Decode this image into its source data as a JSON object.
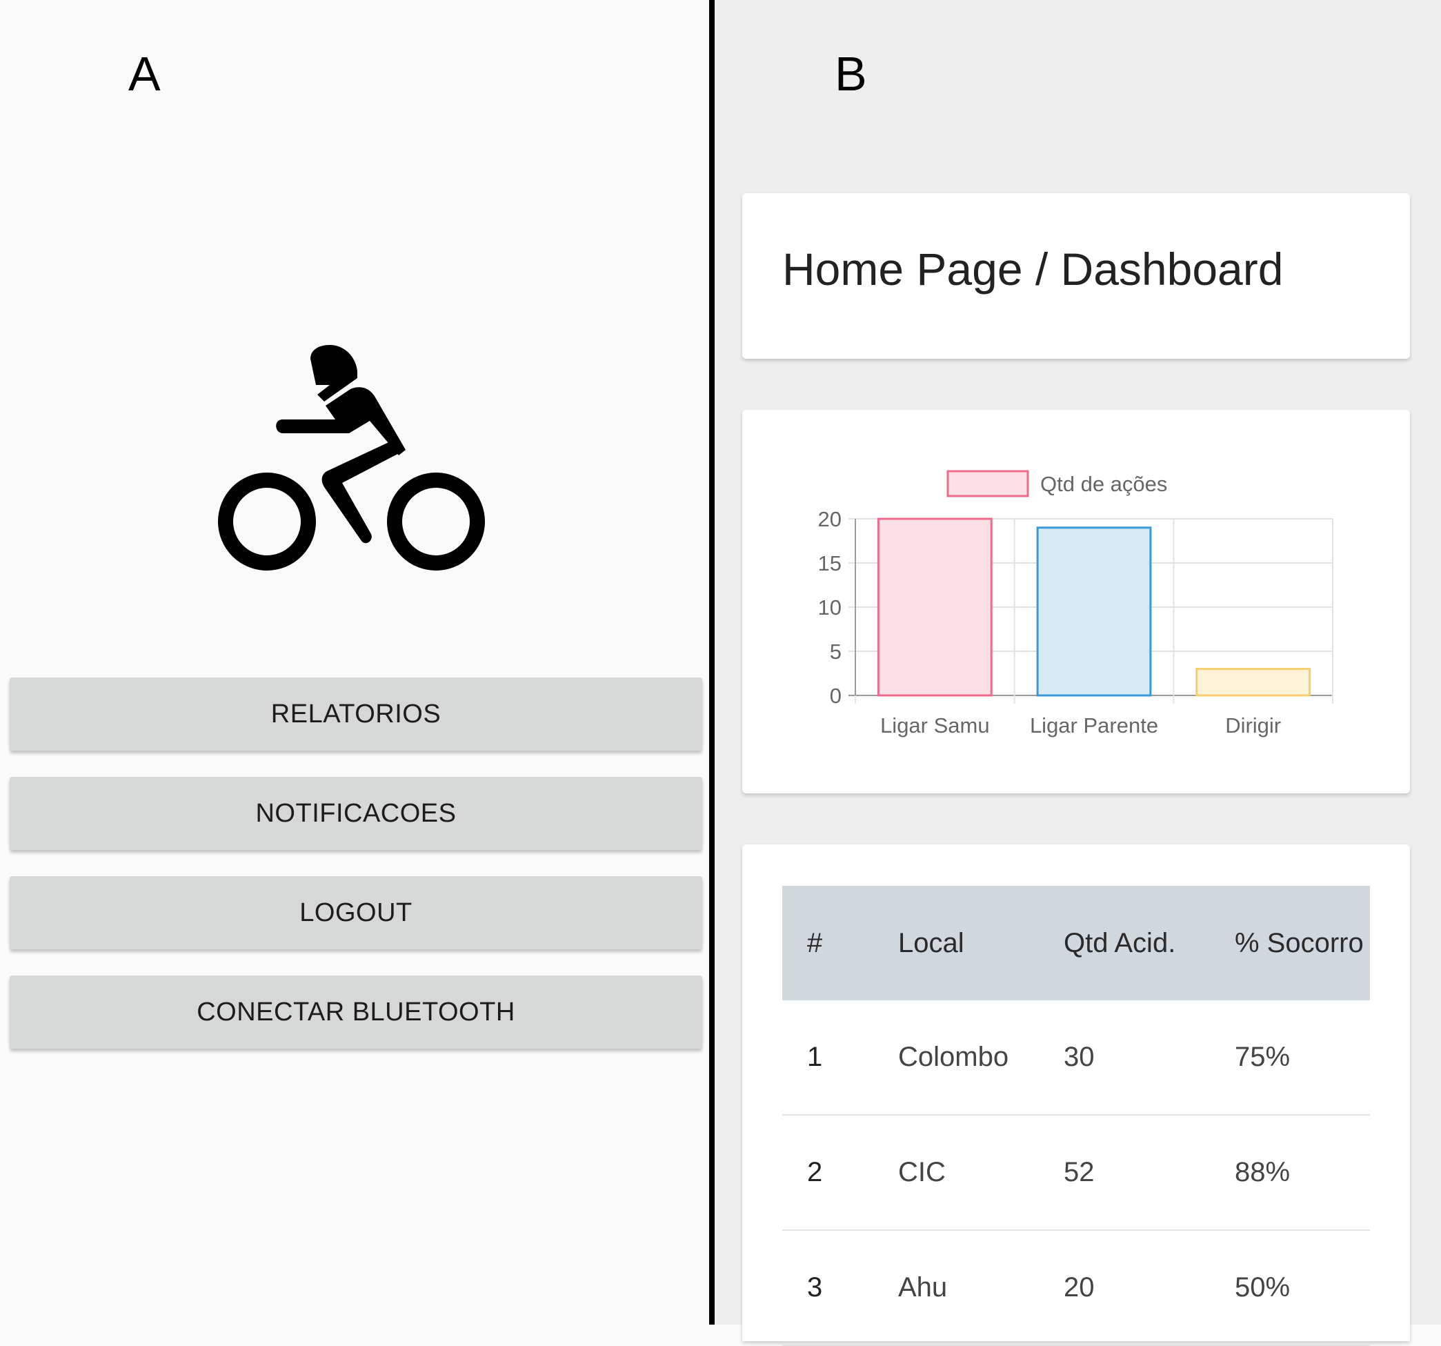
{
  "panel_a": {
    "letter": "A",
    "icon": "motorcycle-rider-icon",
    "buttons": [
      "RELATORIOS",
      "NOTIFICACOES",
      "LOGOUT",
      "CONECTAR BLUETOOTH"
    ]
  },
  "panel_b": {
    "letter": "B",
    "page_title": "Home Page / Dashboard",
    "table": {
      "headers": [
        "#",
        "Local",
        "Qtd Acid.",
        "% Socorro"
      ],
      "rows": [
        [
          "1",
          "Colombo",
          "30",
          "75%"
        ],
        [
          "2",
          "CIC",
          "52",
          "88%"
        ],
        [
          "3",
          "Ahu",
          "20",
          "50%"
        ]
      ]
    }
  },
  "chart_data": {
    "type": "bar",
    "categories": [
      "Ligar Samu",
      "Ligar Parente",
      "Dirigir"
    ],
    "series": [
      {
        "name": "Qtd de ações",
        "values": [
          20,
          19,
          3
        ]
      }
    ],
    "yticks": [
      "0",
      "5",
      "10",
      "15",
      "20"
    ],
    "ylim": [
      0,
      20
    ],
    "grid": true,
    "legend": "top",
    "bar_fill_colors": [
      "#fde0e6",
      "#d6eaf8",
      "#fdf3d9"
    ],
    "bar_stroke_colors": [
      "#f06b8b",
      "#3a9ad9",
      "#f5cf6b"
    ],
    "legend_fill": "#fde0e6",
    "legend_stroke": "#f06b8b"
  }
}
